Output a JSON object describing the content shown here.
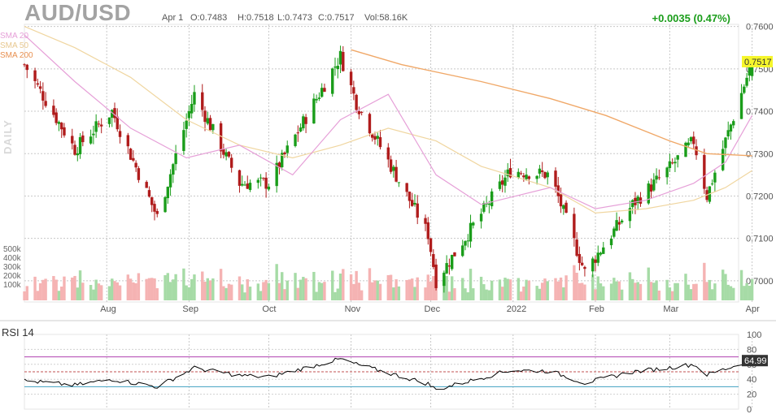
{
  "header": {
    "symbol": "AUD/USD",
    "date": "Apr 1",
    "open": "O:0.7483",
    "high": "H:0.7518",
    "low": "L:0.7473",
    "close": "C:0.7517",
    "volume": "Vol:58.16K",
    "change": "+0.0035 (0.47%)"
  },
  "legend": {
    "sma20": "SMA 20",
    "sma50": "SMA 50",
    "sma200": "SMA 200",
    "daily": "DAILY"
  },
  "rsi": {
    "title": "RSI 14",
    "current": "64.99",
    "ticks": [
      "100",
      "80",
      "60",
      "40",
      "20",
      "0"
    ],
    "overbought": 70,
    "oversold": 30
  },
  "price_axis": {
    "ticks": [
      "0.7600",
      "0.7500",
      "0.7400",
      "0.7300",
      "0.7200",
      "0.7100",
      "0.7000"
    ],
    "last_price": "0.7517"
  },
  "volume_axis": {
    "ticks": [
      "500k",
      "400k",
      "300k",
      "200k",
      "100k"
    ]
  },
  "x_axis": {
    "labels": [
      "Aug",
      "Sep",
      "Oct",
      "Nov",
      "Dec",
      "2022",
      "Feb",
      "Mar",
      "Apr"
    ]
  },
  "colors": {
    "up": "#1a9d1a",
    "down": "#b01c1c",
    "vol_up": "#a6dba6",
    "vol_down": "#f5b3b3",
    "sma20": "#e6a0d8",
    "sma50": "#f0d6a0",
    "sma200": "#f0a868",
    "rsi_line": "#000000",
    "rsi_ob": "#b040b0",
    "rsi_os": "#40a0c0",
    "last_price_bg": "#f6f62a"
  },
  "chart_data": {
    "type": "candlestick",
    "title": "AUD/USD",
    "timeframe": "DAILY",
    "y_range": [
      0.695,
      0.7605
    ],
    "key_closes": [
      {
        "date": "Jul 1",
        "close": 0.751
      },
      {
        "date": "Jul 20",
        "close": 0.731
      },
      {
        "date": "Aug 3",
        "close": 0.74
      },
      {
        "date": "Aug 20",
        "close": 0.715
      },
      {
        "date": "Sep 3",
        "close": 0.744
      },
      {
        "date": "Sep 20",
        "close": 0.723
      },
      {
        "date": "Oct 1",
        "close": 0.723
      },
      {
        "date": "Oct 28",
        "close": 0.753
      },
      {
        "date": "Nov 3",
        "close": 0.742
      },
      {
        "date": "Nov 30",
        "close": 0.711
      },
      {
        "date": "Dec 3",
        "close": 0.7
      },
      {
        "date": "Dec 31",
        "close": 0.726
      },
      {
        "date": "Jan 15",
        "close": 0.725
      },
      {
        "date": "Jan 28",
        "close": 0.702
      },
      {
        "date": "Feb 15",
        "close": 0.718
      },
      {
        "date": "Feb 28",
        "close": 0.726
      },
      {
        "date": "Mar 10",
        "close": 0.733
      },
      {
        "date": "Mar 15",
        "close": 0.72
      },
      {
        "date": "Apr 1",
        "close": 0.7517
      }
    ],
    "sma20_points": [
      {
        "date": "Jul 1",
        "value": 0.758
      },
      {
        "date": "Jul 20",
        "value": 0.747
      },
      {
        "date": "Aug 10",
        "value": 0.736
      },
      {
        "date": "Aug 31",
        "value": 0.729
      },
      {
        "date": "Sep 20",
        "value": 0.732
      },
      {
        "date": "Oct 10",
        "value": 0.725
      },
      {
        "date": "Oct 28",
        "value": 0.738
      },
      {
        "date": "Nov 15",
        "value": 0.744
      },
      {
        "date": "Dec 3",
        "value": 0.725
      },
      {
        "date": "Dec 20",
        "value": 0.718
      },
      {
        "date": "Jan 15",
        "value": 0.722
      },
      {
        "date": "Feb 1",
        "value": 0.717
      },
      {
        "date": "Feb 20",
        "value": 0.719
      },
      {
        "date": "Mar 10",
        "value": 0.723
      },
      {
        "date": "Mar 22",
        "value": 0.728
      },
      {
        "date": "Apr 1",
        "value": 0.739
      }
    ],
    "sma50_points": [
      {
        "date": "Jul 1",
        "value": 0.76
      },
      {
        "date": "Jul 20",
        "value": 0.755
      },
      {
        "date": "Aug 10",
        "value": 0.748
      },
      {
        "date": "Aug 31",
        "value": 0.738
      },
      {
        "date": "Sep 20",
        "value": 0.732
      },
      {
        "date": "Oct 10",
        "value": 0.729
      },
      {
        "date": "Oct 28",
        "value": 0.732
      },
      {
        "date": "Nov 15",
        "value": 0.736
      },
      {
        "date": "Dec 3",
        "value": 0.733
      },
      {
        "date": "Dec 20",
        "value": 0.727
      },
      {
        "date": "Jan 15",
        "value": 0.722
      },
      {
        "date": "Feb 1",
        "value": 0.716
      },
      {
        "date": "Feb 20",
        "value": 0.717
      },
      {
        "date": "Mar 10",
        "value": 0.719
      },
      {
        "date": "Mar 22",
        "value": 0.722
      },
      {
        "date": "Apr 1",
        "value": 0.726
      }
    ],
    "sma200_points": [
      {
        "date": "Nov 1",
        "value": 0.7545
      },
      {
        "date": "Nov 20",
        "value": 0.751
      },
      {
        "date": "Dec 20",
        "value": 0.747
      },
      {
        "date": "Jan 15",
        "value": 0.743
      },
      {
        "date": "Feb 5",
        "value": 0.739
      },
      {
        "date": "Mar 1",
        "value": 0.733
      },
      {
        "date": "Mar 15",
        "value": 0.73
      },
      {
        "date": "Apr 1",
        "value": 0.7295
      }
    ],
    "rsi_points": [
      {
        "date": "Jul 1",
        "value": 38
      },
      {
        "date": "Jul 20",
        "value": 32
      },
      {
        "date": "Aug 3",
        "value": 40
      },
      {
        "date": "Aug 20",
        "value": 30
      },
      {
        "date": "Sep 3",
        "value": 55
      },
      {
        "date": "Sep 20",
        "value": 45
      },
      {
        "date": "Oct 1",
        "value": 43
      },
      {
        "date": "Oct 28",
        "value": 67
      },
      {
        "date": "Nov 3",
        "value": 60
      },
      {
        "date": "Nov 30",
        "value": 34
      },
      {
        "date": "Dec 3",
        "value": 26
      },
      {
        "date": "Dec 31",
        "value": 52
      },
      {
        "date": "Jan 15",
        "value": 51
      },
      {
        "date": "Jan 28",
        "value": 35
      },
      {
        "date": "Feb 15",
        "value": 50
      },
      {
        "date": "Feb 28",
        "value": 55
      },
      {
        "date": "Mar 10",
        "value": 60
      },
      {
        "date": "Mar 15",
        "value": 46
      },
      {
        "date": "Apr 1",
        "value": 64.99
      }
    ]
  }
}
